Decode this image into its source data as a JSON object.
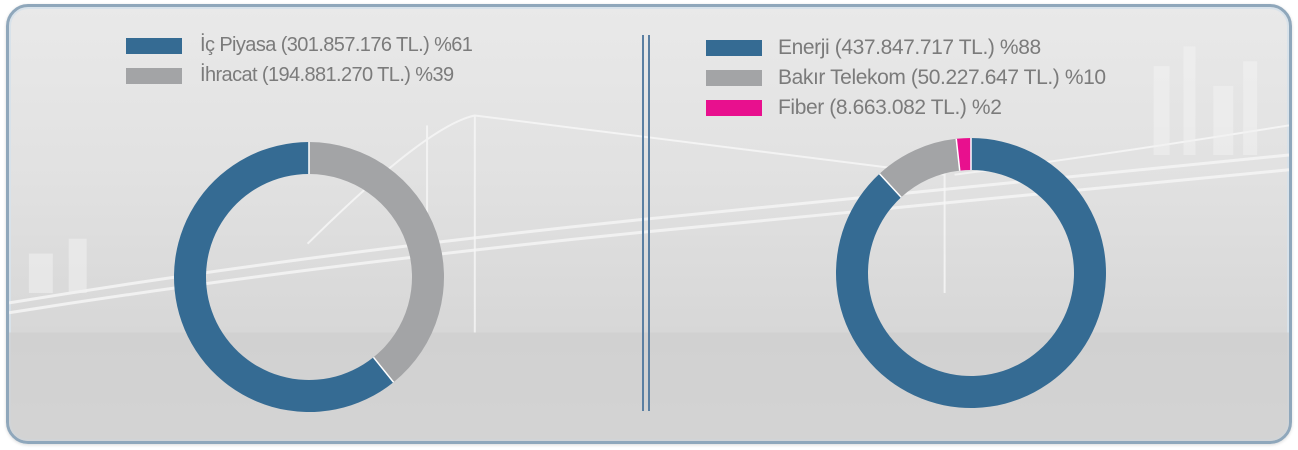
{
  "colors": {
    "dark_blue": "#356b93",
    "gray": "#a3a4a6",
    "magenta": "#e8108e",
    "frame": "#8fa7bb"
  },
  "chart_data": [
    {
      "type": "pie",
      "style": "donut",
      "legend_position": "top",
      "series": [
        {
          "name": "İç Piyasa (301.857.176 TL.) %61",
          "value": 301857176,
          "percent": 61,
          "color": "#356b93"
        },
        {
          "name": "İhracat (194.881.270 TL.) %39",
          "value": 194881270,
          "percent": 39,
          "color": "#a3a4a6"
        }
      ]
    },
    {
      "type": "pie",
      "style": "donut",
      "legend_position": "top",
      "series": [
        {
          "name": "Enerji (437.847.717 TL.) %88",
          "value": 437847717,
          "percent": 88,
          "color": "#356b93"
        },
        {
          "name": "Bakır Telekom (50.227.647 TL.) %10",
          "value": 50227647,
          "percent": 10,
          "color": "#a3a4a6"
        },
        {
          "name": "Fiber (8.663.082 TL.) %2",
          "value": 8663082,
          "percent": 2,
          "color": "#e8108e"
        }
      ]
    }
  ]
}
